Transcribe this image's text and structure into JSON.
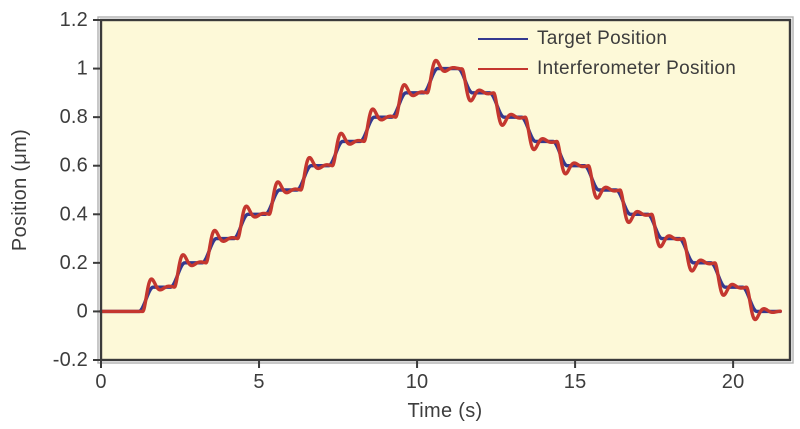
{
  "figure": {
    "background": "#ffffff",
    "plot_background": "#fdf9d8",
    "frame_color": "#3b3b3b",
    "outer_edge_color": "#b0b0b0",
    "text_color": "#3d3d3d"
  },
  "chart_data": {
    "type": "line",
    "title": "",
    "xlabel": "Time (s)",
    "ylabel": "Position (μm)",
    "xlim": [
      0,
      21.8
    ],
    "ylim": [
      -0.2,
      1.2
    ],
    "xticks": {
      "values": [
        0,
        5,
        10,
        15,
        20
      ],
      "labels": [
        "0",
        "5",
        "10",
        "15",
        "20"
      ]
    },
    "yticks": {
      "values": [
        -0.2,
        0,
        0.2,
        0.4,
        0.6,
        0.8,
        1,
        1.2
      ],
      "labels": [
        "-0.2",
        "0",
        "0.2",
        "0.4",
        "0.6",
        "0.8",
        "1",
        "1.2"
      ]
    },
    "grid": false,
    "legend_position": "top-right-inside",
    "series": [
      {
        "name": "Target Position",
        "color": "#34398f",
        "role": "commanded smoothed staircase"
      },
      {
        "name": "Interferometer Position",
        "color": "#c4372f",
        "role": "measured response with overshoot"
      }
    ],
    "staircase": {
      "description": "Position steps 0 to 1 um in 0.1 um increments, ~1 s per step, then back down to 0",
      "step_height_um": 0.1,
      "steps": [
        {
          "t": 0.0,
          "level": 0.0
        },
        {
          "t": 1.2,
          "level": 0.1
        },
        {
          "t": 2.2,
          "level": 0.2
        },
        {
          "t": 3.2,
          "level": 0.3
        },
        {
          "t": 4.2,
          "level": 0.4
        },
        {
          "t": 5.2,
          "level": 0.5
        },
        {
          "t": 6.2,
          "level": 0.6
        },
        {
          "t": 7.2,
          "level": 0.7
        },
        {
          "t": 8.2,
          "level": 0.8
        },
        {
          "t": 9.2,
          "level": 0.9
        },
        {
          "t": 10.2,
          "level": 1.0
        },
        {
          "t": 11.3,
          "level": 0.9
        },
        {
          "t": 12.3,
          "level": 0.8
        },
        {
          "t": 13.3,
          "level": 0.7
        },
        {
          "t": 14.3,
          "level": 0.6
        },
        {
          "t": 15.3,
          "level": 0.5
        },
        {
          "t": 16.3,
          "level": 0.4
        },
        {
          "t": 17.3,
          "level": 0.3
        },
        {
          "t": 18.3,
          "level": 0.2
        },
        {
          "t": 19.3,
          "level": 0.1
        },
        {
          "t": 20.3,
          "level": 0.0
        }
      ],
      "end_time_s": 21.5,
      "target_transition_duration_s": 0.45,
      "response": {
        "delay_s": 0.12,
        "damping_ratio": 0.33,
        "natural_frequency_rad_s": 12
      }
    }
  }
}
